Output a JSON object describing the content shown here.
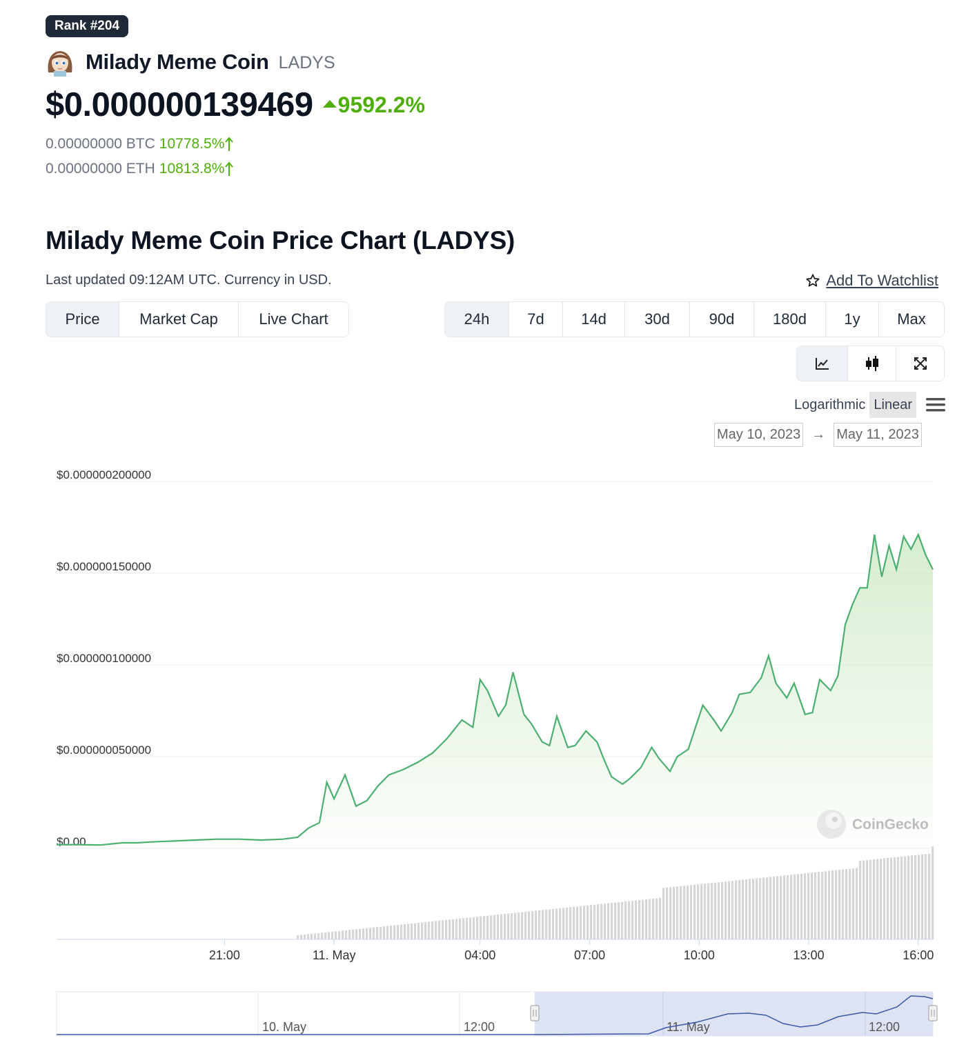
{
  "rank_badge": "Rank #204",
  "coin": {
    "name": "Milady Meme Coin",
    "symbol": "LADYS",
    "avatar_icon": "milady-avatar-icon"
  },
  "price": {
    "value": "$0.000000139469",
    "change": "9592.2%",
    "change_color": "#4eaf0a"
  },
  "pairs": [
    {
      "value": "0.00000000 BTC",
      "change": "10778.5%"
    },
    {
      "value": "0.00000000 ETH",
      "change": "10813.8%"
    }
  ],
  "chart_section": {
    "title": "Milady Meme Coin Price Chart (LADYS)",
    "updated": "Last updated 09:12AM UTC. Currency in USD.",
    "watchlist": "Add To Watchlist"
  },
  "type_tabs": [
    "Price",
    "Market Cap",
    "Live Chart"
  ],
  "active_type_tab": 0,
  "range_tabs": [
    "24h",
    "7d",
    "14d",
    "30d",
    "90d",
    "180d",
    "1y",
    "Max"
  ],
  "active_range_tab": 0,
  "view_icons": [
    "line-chart-icon",
    "candlestick-icon",
    "expand-icon"
  ],
  "scale": {
    "options": [
      "Logarithmic",
      "Linear"
    ],
    "active": "Linear",
    "menu_icon": "hamburger-menu-icon"
  },
  "date_range": {
    "from": "May 10, 2023",
    "to": "May 11, 2023"
  },
  "watermark": "CoinGecko",
  "chart_data": {
    "type": "area",
    "title": "",
    "xlabel": "",
    "ylabel": "",
    "ylim": [
      0,
      2e-07
    ],
    "y_ticks": [
      "$0.00",
      "$0.000000050000",
      "$0.000000100000",
      "$0.000000150000",
      "$0.000000200000"
    ],
    "y_tick_values": [
      0,
      5e-08,
      1e-07,
      1.5e-07,
      2e-07
    ],
    "x_ticks": [
      "21:00",
      "11. May",
      "04:00",
      "07:00",
      "10:00",
      "13:00",
      "16:00"
    ],
    "x_tick_hours": [
      21,
      24,
      28,
      31,
      34,
      37,
      40
    ],
    "xlim_hours": [
      16.4,
      40.4
    ],
    "line_color": "#4caf72",
    "grid": true,
    "series": [
      {
        "x_hours": [
          16.4,
          17.0,
          17.6,
          18.2,
          18.6,
          19.0,
          19.6,
          20.2,
          20.8,
          21.4,
          22.0,
          22.6,
          23.0,
          23.3,
          23.6,
          23.8,
          24.0,
          24.3,
          24.6,
          24.9,
          25.2,
          25.5,
          25.9,
          26.3,
          26.7,
          27.1,
          27.5,
          27.8,
          28.0,
          28.2,
          28.5,
          28.7,
          28.9,
          29.2,
          29.4,
          29.7,
          29.9,
          30.1,
          30.4,
          30.6,
          30.9,
          31.2,
          31.4,
          31.6,
          31.9,
          32.1,
          32.4,
          32.7,
          32.9,
          33.2,
          33.4,
          33.7,
          33.9,
          34.1,
          34.4,
          34.6,
          34.9,
          35.1,
          35.4,
          35.7,
          35.9,
          36.1,
          36.4,
          36.6,
          36.9,
          37.1,
          37.3,
          37.6,
          37.8,
          38.0,
          38.2,
          38.4,
          38.6,
          38.8,
          39.0,
          39.2,
          39.4,
          39.6,
          39.8,
          40.0,
          40.2,
          40.4
        ],
        "values": [
          2e-09,
          2e-09,
          1.8e-09,
          3e-09,
          3e-09,
          3.5e-09,
          4e-09,
          4.5e-09,
          5e-09,
          5e-09,
          4.5e-09,
          5e-09,
          6e-09,
          1.1e-08,
          1.4e-08,
          3.6e-08,
          2.7e-08,
          4e-08,
          2.3e-08,
          2.6e-08,
          3.4e-08,
          4e-08,
          4.3e-08,
          4.7e-08,
          5.2e-08,
          6e-08,
          7e-08,
          6.6e-08,
          9.2e-08,
          8.6e-08,
          7.2e-08,
          7.8e-08,
          9.6e-08,
          7.3e-08,
          6.8e-08,
          5.8e-08,
          5.6e-08,
          7.2e-08,
          5.5e-08,
          5.6e-08,
          6.4e-08,
          5.8e-08,
          4.8e-08,
          3.9e-08,
          3.5e-08,
          3.8e-08,
          4.4e-08,
          5.5e-08,
          4.9e-08,
          4.2e-08,
          5e-08,
          5.4e-08,
          6.6e-08,
          7.8e-08,
          7e-08,
          6.4e-08,
          7.4e-08,
          8.4e-08,
          8.5e-08,
          9.3e-08,
          1.05e-07,
          9e-08,
          8.2e-08,
          9e-08,
          7.3e-08,
          7.4e-08,
          9.2e-08,
          8.6e-08,
          9.4e-08,
          1.22e-07,
          1.33e-07,
          1.42e-07,
          1.42e-07,
          1.71e-07,
          1.48e-07,
          1.65e-07,
          1.52e-07,
          1.7e-07,
          1.63e-07,
          1.71e-07,
          1.6e-07,
          1.52e-07
        ]
      }
    ]
  }
}
